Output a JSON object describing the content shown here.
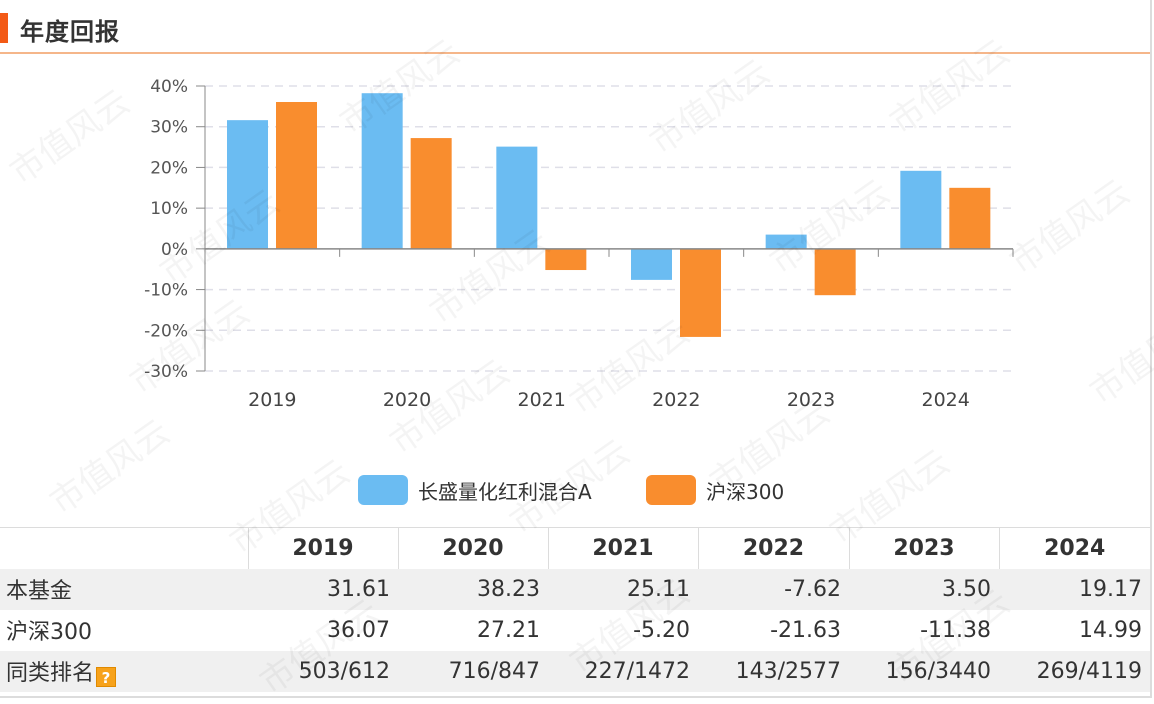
{
  "header": {
    "title": "年度回报"
  },
  "watermark": "市值风云",
  "chart_data": {
    "type": "bar",
    "categories": [
      "2019",
      "2020",
      "2021",
      "2022",
      "2023",
      "2024"
    ],
    "series": [
      {
        "name": "长盛量化红利混合A",
        "color": "#6bbcf2",
        "values": [
          31.61,
          38.23,
          25.11,
          -7.62,
          3.5,
          19.17
        ]
      },
      {
        "name": "沪深300",
        "color": "#f98d2e",
        "values": [
          36.07,
          27.21,
          -5.2,
          -21.63,
          -11.38,
          14.99
        ]
      }
    ],
    "ylim": [
      -30,
      40
    ],
    "yticks": [
      40,
      30,
      20,
      10,
      0,
      -10,
      -20,
      -30
    ],
    "ytick_labels": [
      "40%",
      "30%",
      "20%",
      "10%",
      "0%",
      "-10%",
      "-20%",
      "-30%"
    ],
    "grid": true,
    "legend_position": "bottom"
  },
  "legend": {
    "fund": {
      "label": "长盛量化红利混合A",
      "color": "#6bbcf2"
    },
    "index": {
      "label": "沪深300",
      "color": "#f98d2e"
    }
  },
  "table": {
    "headers": [
      "",
      "2019",
      "2020",
      "2021",
      "2022",
      "2023",
      "2024"
    ],
    "rows": [
      {
        "label": "本基金",
        "values": [
          "31.61",
          "38.23",
          "25.11",
          "-7.62",
          "3.50",
          "19.17"
        ]
      },
      {
        "label": "沪深300",
        "values": [
          "36.07",
          "27.21",
          "-5.20",
          "-21.63",
          "-11.38",
          "14.99"
        ]
      },
      {
        "label": "同类排名",
        "values": [
          "503/612",
          "716/847",
          "227/1472",
          "143/2577",
          "156/3440",
          "269/4119"
        ]
      }
    ],
    "help_icon": "?"
  }
}
